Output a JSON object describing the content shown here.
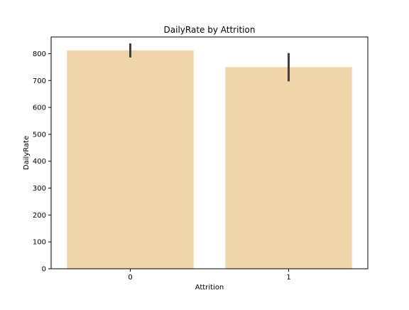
{
  "chart_data": {
    "type": "bar",
    "title": "DailyRate by Attrition",
    "xlabel": "Attrition",
    "ylabel": "DailyRate",
    "categories": [
      "0",
      "1"
    ],
    "values": [
      812,
      750
    ],
    "error_bars": [
      {
        "low": 786,
        "high": 838
      },
      {
        "low": 697,
        "high": 802
      }
    ],
    "ylim": [
      0,
      862
    ],
    "yticks": [
      0,
      100,
      200,
      300,
      400,
      500,
      600,
      700,
      800
    ],
    "grid": false,
    "legend": "none",
    "colors": {
      "bar": "#f1d5aa",
      "error_bar": "#3f3f3f",
      "axis": "#000000"
    }
  }
}
